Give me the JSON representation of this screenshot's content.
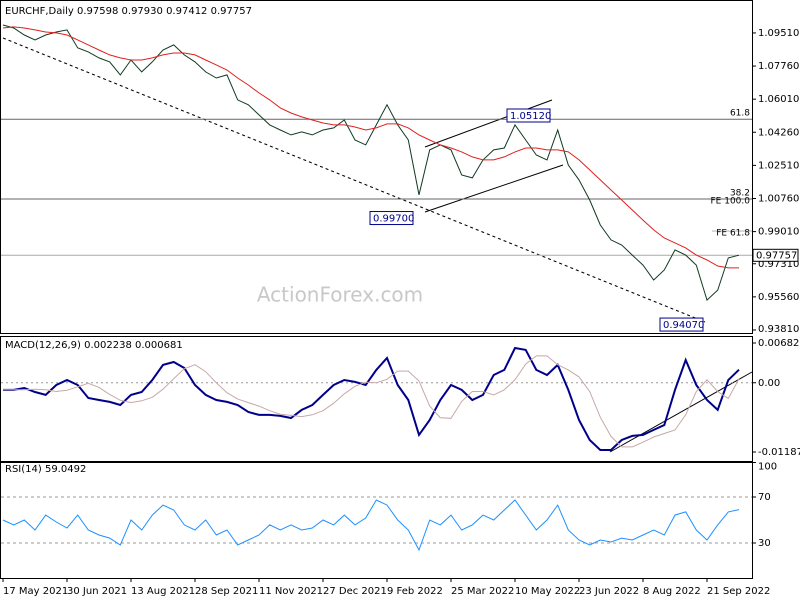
{
  "chart_data": [
    {
      "type": "line",
      "title": "EURCHF,Daily  0.97598 0.97930 0.97412 0.97757",
      "watermark": "ActionForex.com",
      "ylim": [
        0.9365,
        1.1104
      ],
      "yticks": [
        {
          "value": 1.0951,
          "label": "1.09510"
        },
        {
          "value": 1.0776,
          "label": "1.07760"
        },
        {
          "value": 1.0601,
          "label": "1.06010"
        },
        {
          "value": 1.0426,
          "label": "1.04260"
        },
        {
          "value": 1.0251,
          "label": "1.02510"
        },
        {
          "value": 1.0076,
          "label": "1.00760"
        },
        {
          "value": 0.9901,
          "label": "0.99010"
        },
        {
          "value": 0.9731,
          "label": "0.97310"
        },
        {
          "value": 0.9556,
          "label": "0.95560"
        },
        {
          "value": 0.9381,
          "label": "0.93810"
        }
      ],
      "grid": false,
      "last_price": 0.97757,
      "levels": [
        {
          "value": 1.0495,
          "label": "61.8",
          "kind": "retracement"
        },
        {
          "value": 1.0073,
          "label": "38.2",
          "kind": "retracement"
        },
        {
          "value": 1.0073,
          "label": "FE 100.0",
          "kind": "expansion"
        },
        {
          "value": 0.9904,
          "label": "FE 61.8",
          "kind": "expansion"
        }
      ],
      "price_labels": [
        {
          "value": 0.997,
          "label": "0.99700"
        },
        {
          "value": 1.0512,
          "label": "1.05120"
        },
        {
          "value": 0.9407,
          "label": "0.94070"
        }
      ],
      "series": [
        {
          "color": "#103a20",
          "width": 1,
          "values": [
            1.0993,
            1.0977,
            1.094,
            1.0914,
            1.094,
            1.0956,
            1.0967,
            1.0872,
            1.0851,
            1.0819,
            1.0798,
            1.0729,
            1.0808,
            1.0745,
            1.0798,
            1.0861,
            1.0888,
            1.0835,
            1.0798,
            1.0745,
            1.0713,
            1.0729,
            1.0597,
            1.0571,
            1.0518,
            1.0465,
            1.0438,
            1.0412,
            1.0428,
            1.0412,
            1.0438,
            1.0449,
            1.0491,
            1.0385,
            1.0359,
            1.0465,
            1.0571,
            1.0465,
            1.0385,
            1.0095,
            1.0333,
            1.0359,
            1.0333,
            1.02,
            1.0185,
            1.028,
            1.0333,
            1.0343,
            1.0465,
            1.0385,
            1.0306,
            1.028,
            1.0438,
            1.0253,
            1.0174,
            1.0068,
            0.9936,
            0.9857,
            0.983,
            0.9777,
            0.9724,
            0.9645,
            0.9698,
            0.9804,
            0.9777,
            0.9724,
            0.9539,
            0.9592,
            0.9762,
            0.9776
          ]
        },
        {
          "color": "#e02020",
          "width": 1,
          "values": [
            1.0977,
            1.0983,
            1.0977,
            1.0967,
            1.0956,
            1.0951,
            1.094,
            1.0914,
            1.0888,
            1.0861,
            1.0835,
            1.0819,
            1.0808,
            1.0808,
            1.0819,
            1.0835,
            1.0845,
            1.0845,
            1.0835,
            1.0808,
            1.0782,
            1.0755,
            1.0713,
            1.0676,
            1.0634,
            1.0597,
            1.0555,
            1.0528,
            1.0507,
            1.0491,
            1.0475,
            1.0465,
            1.0465,
            1.0454,
            1.0438,
            1.0449,
            1.047,
            1.047,
            1.0449,
            1.0412,
            1.0385,
            1.0359,
            1.0343,
            1.0322,
            1.0296,
            1.028,
            1.028,
            1.0296,
            1.0322,
            1.0343,
            1.0343,
            1.0333,
            1.0333,
            1.0322,
            1.028,
            1.0227,
            1.0174,
            1.0121,
            1.0068,
            1.0015,
            0.9962,
            0.991,
            0.9867,
            0.9841,
            0.9815,
            0.9777,
            0.9751,
            0.9719,
            0.9709,
            0.9709
          ]
        }
      ]
    },
    {
      "type": "line",
      "title": "MACD(12,26,9) 0.002238 0.000681",
      "ylim": [
        -0.01342,
        0.00785
      ],
      "yticks": [
        0.006823,
        {
          "value": 0,
          "label": "0.00"
        },
        -0.011874
      ],
      "grid": false,
      "zero_line": true,
      "series": [
        {
          "color": "#00008b",
          "width": 2,
          "values": [
            -0.00123,
            -0.00123,
            -0.00089,
            -0.00158,
            -0.00209,
            -0.00038,
            0.00048,
            -0.00038,
            -0.00261,
            -0.00295,
            -0.00329,
            -0.00381,
            -0.00209,
            -0.00158,
            0.00048,
            0.00306,
            0.00357,
            0.00254,
            -0.00038,
            -0.00209,
            -0.00295,
            -0.00329,
            -0.00381,
            -0.00501,
            -0.00552,
            -0.00552,
            -0.00569,
            -0.00604,
            -0.00466,
            -0.00381,
            -0.00209,
            -0.00038,
            0.00048,
            0.00014,
            -0.00038,
            0.0022,
            0.00425,
            -0.00038,
            -0.00295,
            -0.00895,
            -0.00638,
            -0.00295,
            -0.00038,
            -0.00123,
            -0.00295,
            -0.00209,
            0.00134,
            0.0022,
            0.00597,
            0.00563,
            0.0022,
            0.00134,
            0.00306,
            -0.00123,
            -0.00638,
            -0.00981,
            -0.01153,
            -0.01153,
            -0.00981,
            -0.00912,
            -0.00895,
            -0.00809,
            -0.00724,
            -0.00123,
            0.00391,
            -0.00038,
            -0.00295,
            -0.00466,
            0.00048,
            0.002238
          ]
        },
        {
          "color": "#c8a8a8",
          "width": 1,
          "values": [
            -0.0012,
            -0.0012,
            -0.0012,
            -0.0011,
            -0.0012,
            -0.0015,
            -0.0013,
            -0.0007,
            -0.0001,
            -0.0008,
            -0.002,
            -0.003,
            -0.0034,
            -0.0031,
            -0.0025,
            -0.0011,
            0.0007,
            0.0024,
            0.0031,
            0.0019,
            0.0,
            -0.0017,
            -0.0028,
            -0.0034,
            -0.004,
            -0.0048,
            -0.0054,
            -0.0056,
            -0.0058,
            -0.0055,
            -0.0048,
            -0.0035,
            -0.0019,
            -0.0006,
            0.0001,
            0.0,
            0.0006,
            0.002,
            0.002,
            0.0003,
            -0.004,
            -0.006,
            -0.0061,
            -0.0032,
            -0.0015,
            -0.0015,
            -0.0021,
            -0.0012,
            0.0005,
            0.0032,
            0.0046,
            0.0046,
            0.0031,
            0.0022,
            0.001,
            -0.0015,
            -0.0059,
            -0.0092,
            -0.011,
            -0.011,
            -0.0102,
            -0.0093,
            -0.0087,
            -0.0081,
            -0.0055,
            -0.0015,
            0.0005,
            -0.0015,
            -0.0027,
            0.000681
          ]
        }
      ]
    },
    {
      "type": "line",
      "title": "RSI(14) 59.0492",
      "ylim": [
        0,
        100
      ],
      "yticks": [
        100,
        70,
        30
      ],
      "grid": true,
      "categories": [
        "17 May 2021",
        null,
        null,
        null,
        null,
        null,
        "30 Jun 2021",
        null,
        null,
        null,
        null,
        null,
        "13 Aug 2021",
        null,
        null,
        null,
        null,
        null,
        "28 Sep 2021",
        null,
        null,
        null,
        null,
        null,
        "11 Nov 2021",
        null,
        null,
        null,
        null,
        null,
        "27 Dec 2021",
        null,
        null,
        null,
        null,
        null,
        "9 Feb 2022",
        null,
        null,
        null,
        null,
        null,
        "25 Mar 2022",
        null,
        null,
        null,
        null,
        null,
        "10 May 2022",
        null,
        null,
        null,
        null,
        null,
        "23 Jun 2022",
        null,
        null,
        null,
        null,
        null,
        "8 Aug 2022",
        null,
        null,
        null,
        null,
        null,
        "21 Sep 2022",
        null,
        null,
        null
      ],
      "series": [
        {
          "color": "#1e90ff",
          "width": 1,
          "values": [
            50.0,
            45.7,
            50.0,
            41.3,
            54.3,
            48.3,
            43.0,
            54.3,
            41.3,
            37.0,
            34.3,
            28.3,
            50.0,
            41.3,
            54.3,
            63.0,
            58.7,
            45.7,
            41.3,
            50.0,
            37.0,
            41.3,
            28.3,
            32.6,
            37.0,
            45.7,
            41.3,
            45.7,
            41.3,
            43.0,
            50.0,
            45.7,
            54.3,
            45.7,
            51.7,
            67.4,
            63.0,
            50.0,
            41.3,
            23.9,
            50.0,
            45.7,
            54.3,
            41.3,
            45.7,
            54.3,
            50.0,
            58.7,
            67.4,
            54.3,
            41.3,
            50.0,
            63.0,
            41.3,
            32.6,
            28.3,
            32.6,
            30.9,
            34.3,
            32.6,
            37.0,
            41.3,
            37.0,
            54.3,
            57.0,
            41.3,
            32.6,
            45.7,
            57.0,
            59.0492
          ]
        }
      ]
    }
  ]
}
